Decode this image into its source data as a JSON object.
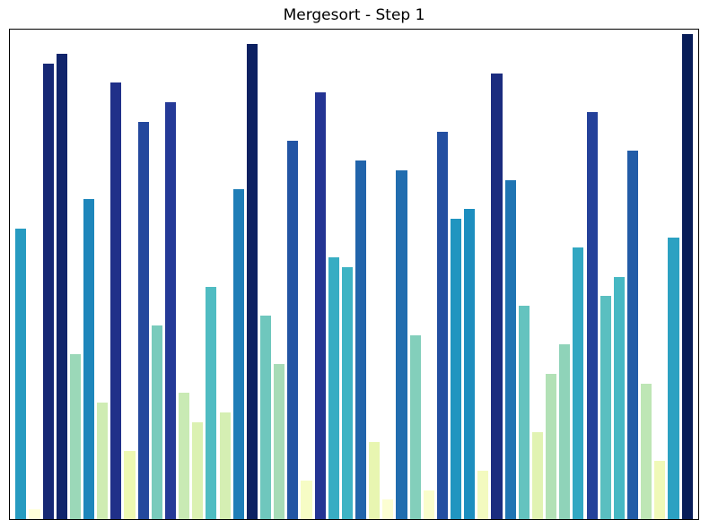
{
  "chart_data": {
    "type": "bar",
    "title": "Mergesort - Step 1",
    "values": [
      30,
      1,
      47,
      48,
      17,
      33,
      12,
      45,
      7,
      41,
      20,
      43,
      13,
      10,
      24,
      11,
      34,
      49,
      21,
      16,
      39,
      4,
      44,
      27,
      26,
      37,
      8,
      2,
      36,
      19,
      3,
      40,
      31,
      32,
      5,
      46,
      35,
      22,
      9,
      15,
      18,
      28,
      42,
      23,
      25,
      38,
      14,
      6,
      29,
      50
    ],
    "n_bars": 50,
    "xlabel": "",
    "ylabel": "",
    "ylim": [
      0,
      50.5
    ],
    "grid": false,
    "legend": "none",
    "tick_labels_visible": false,
    "bar_width_frac": 0.8,
    "colormap": {
      "name": "YlGnBu",
      "anchors": [
        "#ffffd9",
        "#edf8b1",
        "#c7e9b4",
        "#7fcdbb",
        "#41b6c4",
        "#1d91c0",
        "#225ea8",
        "#253494",
        "#081d58"
      ],
      "norm": "(value - min) / (max - min)"
    },
    "colors": {
      "background": "#ffffff",
      "spine": "#000000",
      "title_text": "#000000"
    }
  }
}
